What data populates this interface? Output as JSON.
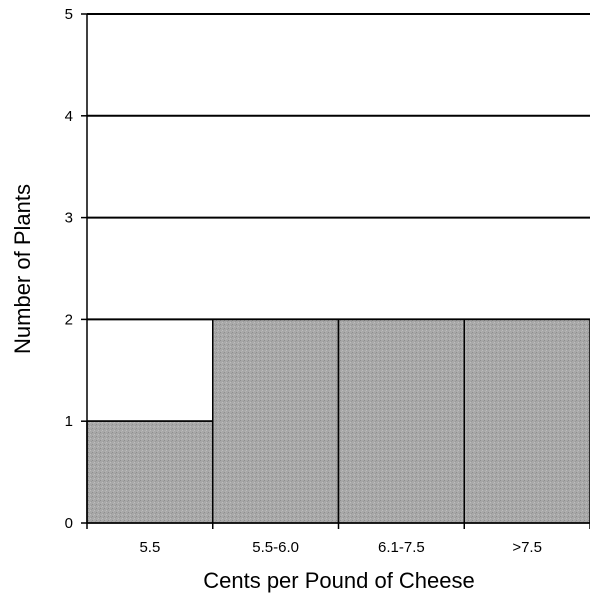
{
  "chart_data": {
    "type": "bar",
    "categories": [
      "5.5",
      "5.5-6.0",
      "6.1-7.5",
      ">7.5"
    ],
    "values": [
      1,
      2,
      2,
      2
    ],
    "xlabel": "Cents per Pound of Cheese",
    "ylabel": "Number of Plants",
    "ylim": [
      0,
      5
    ],
    "yticks": [
      "0",
      "1",
      "2",
      "3",
      "4",
      "5"
    ],
    "grid": "horizontal",
    "colors": {
      "bar_fill": "#a9a9a9",
      "bar_stroke": "#000000",
      "grid": "#000000"
    }
  }
}
